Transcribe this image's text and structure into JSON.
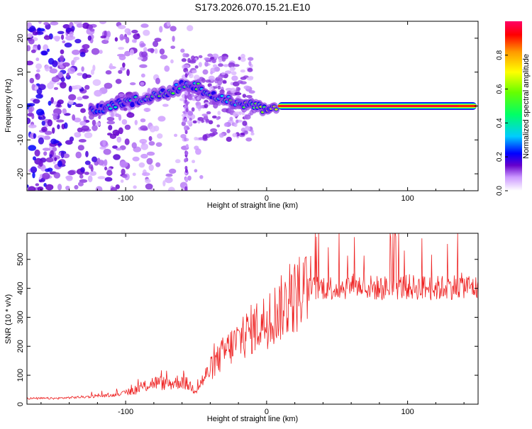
{
  "title": "S173.2026.070.15.21.E10",
  "chart_data": [
    {
      "type": "heatmap",
      "name": "spectrogram",
      "xlabel": "Height of straight line (km)",
      "ylabel": "Frequency (Hz)",
      "xlim": [
        -170,
        150
      ],
      "ylim": [
        -25,
        25
      ],
      "xticks": [
        -100,
        0,
        100
      ],
      "xtick_labels": [
        "-100",
        "0",
        "100"
      ],
      "yticks": [
        -20,
        -10,
        0,
        10,
        20
      ],
      "ytick_labels": [
        "-20",
        "-10",
        "0",
        "10",
        "20"
      ],
      "ridge": {
        "x": [
          -120,
          -110,
          -100,
          -90,
          -80,
          -70,
          -60,
          -50,
          -40,
          -30,
          -20,
          -10,
          0,
          10,
          50,
          100,
          148
        ],
        "freq": [
          -1,
          0,
          1,
          2,
          3,
          4,
          6,
          6,
          3,
          2,
          1,
          0,
          -1,
          0,
          0,
          0,
          0
        ],
        "amplitude": [
          0.3,
          0.35,
          0.4,
          0.45,
          0.5,
          0.5,
          0.45,
          0.55,
          0.5,
          0.5,
          0.55,
          0.6,
          0.7,
          0.9,
          0.95,
          0.95,
          0.9
        ]
      },
      "colorbar": {
        "label": "Normalized spectral amplitude",
        "range": [
          0,
          1
        ],
        "ticks": [
          0.0,
          0.2,
          0.4,
          0.6,
          0.8
        ],
        "tick_labels": [
          "0.0",
          "0.2",
          "0.4",
          "0.6",
          "0.8"
        ],
        "colors": [
          "#ffffff",
          "#cc99ff",
          "#6600cc",
          "#0000ff",
          "#00ccff",
          "#00ff66",
          "#66ff00",
          "#ffff00",
          "#ff9900",
          "#ff0000",
          "#ff0066"
        ]
      }
    },
    {
      "type": "line",
      "name": "snr",
      "xlabel": "Height of straight line (km)",
      "ylabel": "SNR (10 * v/v)",
      "xlim": [
        -170,
        150
      ],
      "ylim": [
        0,
        590
      ],
      "xticks": [
        -100,
        0,
        100
      ],
      "xtick_labels": [
        "-100",
        "0",
        "100"
      ],
      "yticks": [
        0,
        100,
        200,
        300,
        400,
        500
      ],
      "ytick_labels": [
        "0",
        "100",
        "200",
        "300",
        "400",
        "500"
      ],
      "color": "#ee2222",
      "envelope": {
        "x": [
          -170,
          -150,
          -130,
          -110,
          -100,
          -90,
          -80,
          -70,
          -60,
          -50,
          -40,
          -30,
          -20,
          -10,
          0,
          10,
          20,
          30,
          40,
          50,
          60,
          80,
          100,
          120,
          140,
          150
        ],
        "y": [
          20,
          20,
          25,
          30,
          40,
          55,
          75,
          70,
          80,
          50,
          120,
          180,
          220,
          260,
          290,
          330,
          370,
          395,
          405,
          400,
          410,
          400,
          405,
          400,
          410,
          400
        ]
      }
    }
  ]
}
